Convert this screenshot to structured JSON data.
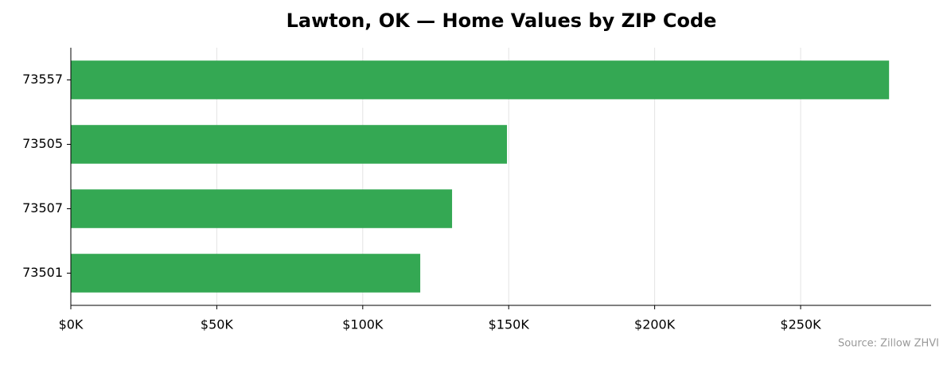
{
  "chart_data": {
    "type": "bar",
    "orientation": "horizontal",
    "title": "Lawton, OK — Home Values by ZIP Code",
    "source": "Source: Zillow ZHVI",
    "categories": [
      "73557",
      "73505",
      "73507",
      "73501"
    ],
    "values": [
      280300,
      149400,
      130600,
      119700
    ],
    "color": "#34a853",
    "xlim": [
      0,
      294700
    ],
    "xticks": [
      {
        "value": 0,
        "label": "$0K"
      },
      {
        "value": 50000,
        "label": "$50K"
      },
      {
        "value": 100000,
        "label": "$100K"
      },
      {
        "value": 150000,
        "label": "$150K"
      },
      {
        "value": 200000,
        "label": "$200K"
      },
      {
        "value": 250000,
        "label": "$250K"
      }
    ],
    "grid": true
  }
}
